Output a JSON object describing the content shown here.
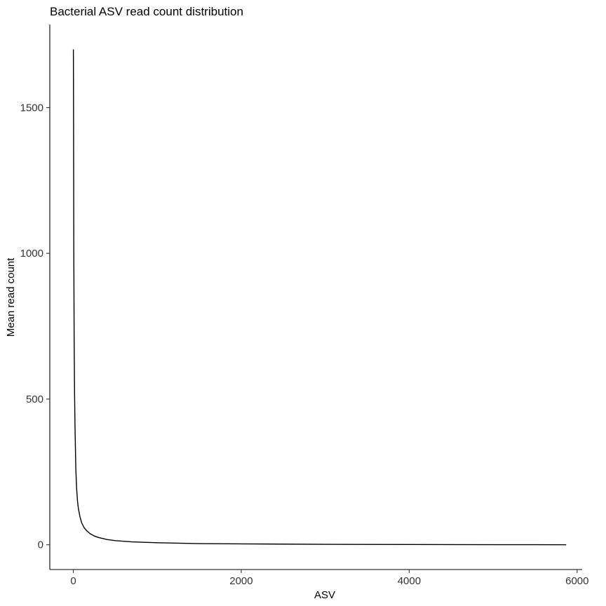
{
  "chart_data": {
    "type": "line",
    "title": "Bacterial ASV read count distribution",
    "xlabel": "ASV",
    "ylabel": "Mean read count",
    "xlim": [
      -280,
      6060
    ],
    "ylim": [
      -85,
      1785
    ],
    "x_ticks": [
      0,
      2000,
      4000,
      6000
    ],
    "y_ticks": [
      0,
      500,
      1000,
      1500
    ],
    "x_tick_labels": [
      "0",
      "2000",
      "4000",
      "6000"
    ],
    "y_tick_labels": [
      "0",
      "500",
      "1000",
      "1500"
    ],
    "grid": false,
    "legend": "none",
    "line_color": "#000000",
    "series": [
      {
        "x": [
          1,
          3,
          6,
          10,
          15,
          20,
          30,
          40,
          50,
          60,
          80,
          100,
          130,
          160,
          200,
          250,
          300,
          400,
          500,
          700,
          1000,
          1500,
          2000,
          3000,
          4000,
          5000,
          5870
        ],
        "values": [
          1700,
          1450,
          1000,
          700,
          520,
          410,
          260,
          190,
          150,
          125,
          95,
          75,
          58,
          48,
          38,
          30,
          25,
          18,
          14,
          10,
          7,
          4,
          3,
          1.5,
          0.8,
          0.4,
          0.1
        ]
      }
    ]
  }
}
